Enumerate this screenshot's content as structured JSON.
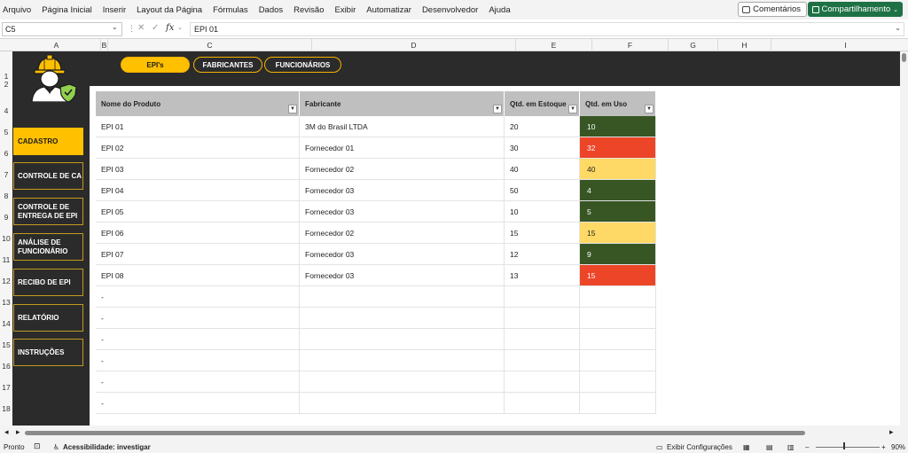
{
  "menu": [
    "Arquivo",
    "Página Inicial",
    "Inserir",
    "Layout da Página",
    "Fórmulas",
    "Dados",
    "Revisão",
    "Exibir",
    "Automatizar",
    "Desenvolvedor",
    "Ajuda"
  ],
  "comments_label": "Comentários",
  "share_label": "Compartilhamento",
  "name_box": "C5",
  "formula_value": "EPI 01",
  "fx_label": "fx",
  "columns": [
    "A",
    "B",
    "C",
    "D",
    "E",
    "F",
    "G",
    "H",
    "I"
  ],
  "rows": [
    "1",
    "2",
    "4",
    "5",
    "6",
    "7",
    "8",
    "9",
    "10",
    "11",
    "12",
    "13",
    "14",
    "15",
    "16",
    "17",
    "18"
  ],
  "top_tabs": [
    "EPI's",
    "FABRICANTES",
    "FUNCIONÁRIOS"
  ],
  "sidebar": [
    "CADASTRO",
    "CONTROLE DE CA",
    "CONTROLE DE ENTREGA DE EPI",
    "ANÁLISE DE FUNCIONÁRIO",
    "RECIBO DE EPI",
    "RELATÓRIO",
    "INSTRUÇÕES"
  ],
  "table": {
    "headers": [
      "Nome do Produto",
      "Fabricante",
      "Qtd. em Estoque",
      "Qtd. em Uso"
    ],
    "rows": [
      {
        "produto": "EPI 01",
        "fabricante": "3M do Brasil LTDA",
        "estoque": "20",
        "uso": "10",
        "uso_color": "#375623",
        "uso_text": "#ffffff"
      },
      {
        "produto": "EPI 02",
        "fabricante": "Fornecedor 01",
        "estoque": "30",
        "uso": "32",
        "uso_color": "#ec4528",
        "uso_text": "#ffffff"
      },
      {
        "produto": "EPI 03",
        "fabricante": "Fornecedor 02",
        "estoque": "40",
        "uso": "40",
        "uso_color": "#ffd966",
        "uso_text": "#222222"
      },
      {
        "produto": "EPI 04",
        "fabricante": "Fornecedor 03",
        "estoque": "50",
        "uso": "4",
        "uso_color": "#375623",
        "uso_text": "#ffffff"
      },
      {
        "produto": "EPI 05",
        "fabricante": "Fornecedor 03",
        "estoque": "10",
        "uso": "5",
        "uso_color": "#375623",
        "uso_text": "#ffffff"
      },
      {
        "produto": "EPI 06",
        "fabricante": "Fornecedor 02",
        "estoque": "15",
        "uso": "15",
        "uso_color": "#ffd966",
        "uso_text": "#222222"
      },
      {
        "produto": "EPI 07",
        "fabricante": "Fornecedor 03",
        "estoque": "12",
        "uso": "9",
        "uso_color": "#375623",
        "uso_text": "#ffffff"
      },
      {
        "produto": "EPI 08",
        "fabricante": "Fornecedor 03",
        "estoque": "13",
        "uso": "15",
        "uso_color": "#ec4528",
        "uso_text": "#ffffff"
      },
      {
        "produto": "-",
        "fabricante": "",
        "estoque": "",
        "uso": "",
        "uso_color": "#ffffff",
        "uso_text": "#222222"
      },
      {
        "produto": "-",
        "fabricante": "",
        "estoque": "",
        "uso": "",
        "uso_color": "#ffffff",
        "uso_text": "#222222"
      },
      {
        "produto": "-",
        "fabricante": "",
        "estoque": "",
        "uso": "",
        "uso_color": "#ffffff",
        "uso_text": "#222222"
      },
      {
        "produto": "-",
        "fabricante": "",
        "estoque": "",
        "uso": "",
        "uso_color": "#ffffff",
        "uso_text": "#222222"
      },
      {
        "produto": "-",
        "fabricante": "",
        "estoque": "",
        "uso": "",
        "uso_color": "#ffffff",
        "uso_text": "#222222"
      },
      {
        "produto": "-",
        "fabricante": "",
        "estoque": "",
        "uso": "",
        "uso_color": "#ffffff",
        "uso_text": "#222222"
      }
    ]
  },
  "status": {
    "ready": "Pronto",
    "accessibility": "Acessibilidade: investigar",
    "view_settings": "Exibir Configurações",
    "zoom": "90%"
  },
  "colors": {
    "accent": "#ffc000",
    "dark": "#2b2b2b",
    "excel_green": "#1e7145"
  }
}
